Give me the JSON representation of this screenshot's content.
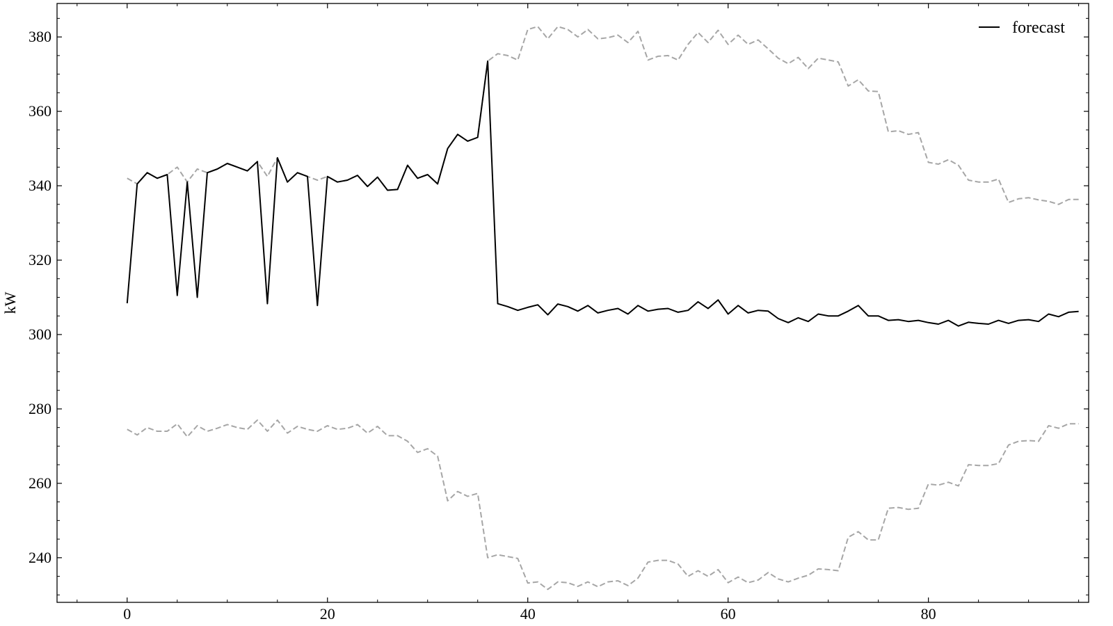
{
  "chart_data": {
    "type": "line",
    "ylabel": "kW",
    "xlim": [
      -7,
      96
    ],
    "ylim": [
      228,
      389
    ],
    "x_ticks": [
      0,
      20,
      40,
      60,
      80
    ],
    "y_ticks": [
      240,
      260,
      280,
      300,
      320,
      340,
      360,
      380
    ],
    "legend": {
      "position": "top-right",
      "entries": [
        "forecast"
      ]
    },
    "grid": false,
    "series": [
      {
        "name": "forecast",
        "style": "solid",
        "color": "#000000",
        "x": [
          0,
          1,
          2,
          3,
          4,
          5,
          6,
          7,
          8,
          9,
          10,
          11,
          12,
          13,
          14,
          15,
          16,
          17,
          18,
          19,
          20,
          21,
          22,
          23,
          24,
          25,
          26,
          27,
          28,
          29,
          30,
          31,
          32,
          33,
          34,
          35,
          36,
          37,
          38,
          39,
          40,
          41,
          42,
          43,
          44,
          45,
          46,
          47,
          48,
          49,
          50,
          51,
          52,
          53,
          54,
          55,
          56,
          57,
          58,
          59,
          60,
          61,
          62,
          63,
          64,
          65,
          66,
          67,
          68,
          69,
          70,
          71,
          72,
          73,
          74,
          75,
          76,
          77,
          78,
          79,
          80,
          81,
          82,
          83,
          84,
          85,
          86,
          87,
          88,
          89,
          90,
          91,
          92,
          93,
          94,
          95
        ],
        "values": [
          308.4,
          340.5,
          343.5,
          342.0,
          343.0,
          310.5,
          341.0,
          310.0,
          343.5,
          344.5,
          346.0,
          345.0,
          344.0,
          346.5,
          308.3,
          347.5,
          341.0,
          343.5,
          342.5,
          307.8,
          342.5,
          341.0,
          341.5,
          342.8,
          339.8,
          342.3,
          338.8,
          339.0,
          345.5,
          342.0,
          343.0,
          340.5,
          350.0,
          353.8,
          352.0,
          353.0,
          373.5,
          308.3,
          307.5,
          306.5,
          307.3,
          308.0,
          305.3,
          308.2,
          307.5,
          306.3,
          307.8,
          305.8,
          306.5,
          307.0,
          305.5,
          307.8,
          306.3,
          306.8,
          307.0,
          306.0,
          306.5,
          308.8,
          307.0,
          309.3,
          305.5,
          307.8,
          305.8,
          306.5,
          306.3,
          304.3,
          303.2,
          304.5,
          303.5,
          305.5,
          305.0,
          305.0,
          306.3,
          307.8,
          305.0,
          305.0,
          303.8,
          304.0,
          303.5,
          303.8,
          303.2,
          302.8,
          303.8,
          302.3,
          303.3,
          303.0,
          302.8,
          303.8,
          303.0,
          303.8,
          304.0,
          303.5,
          305.5,
          304.8,
          306.0,
          306.2
        ]
      },
      {
        "name": "",
        "style": "dashed",
        "color": "#a6a6a6",
        "x": [
          0,
          1,
          2,
          3,
          4,
          5,
          6,
          7,
          8,
          9,
          10,
          11,
          12,
          13,
          14,
          15,
          16,
          17,
          18,
          19,
          20,
          21,
          22,
          23,
          24,
          25,
          26,
          27,
          28,
          29,
          30,
          31,
          32,
          33,
          34,
          35,
          36,
          37,
          38,
          39,
          40,
          41,
          42,
          43,
          44,
          45,
          46,
          47,
          48,
          49,
          50,
          51,
          52,
          53,
          54,
          55,
          56,
          57,
          58,
          59,
          60,
          61,
          62,
          63,
          64,
          65,
          66,
          67,
          68,
          69,
          70,
          71,
          72,
          73,
          74,
          75,
          76,
          77,
          78,
          79,
          80,
          81,
          82,
          83,
          84,
          85,
          86,
          87,
          88,
          89,
          90,
          91,
          92,
          93,
          94,
          95
        ],
        "values": [
          342.0,
          340.5,
          343.5,
          342.0,
          343.0,
          345.0,
          341.0,
          344.5,
          343.5,
          344.5,
          346.0,
          345.0,
          344.0,
          346.5,
          342.5,
          347.5,
          341.0,
          343.5,
          342.5,
          341.5,
          342.5,
          341.0,
          341.5,
          342.8,
          339.8,
          342.3,
          338.8,
          339.0,
          345.5,
          342.0,
          343.0,
          340.5,
          350.0,
          353.8,
          352.0,
          353.0,
          373.5,
          375.5,
          375.0,
          373.8,
          382.0,
          382.8,
          379.5,
          382.8,
          382.0,
          380.0,
          382.0,
          379.5,
          379.8,
          380.5,
          378.5,
          381.5,
          373.8,
          374.8,
          375.0,
          373.8,
          378.0,
          381.2,
          378.5,
          381.8,
          378.0,
          380.5,
          378.0,
          379.2,
          376.8,
          374.3,
          372.8,
          374.5,
          371.5,
          374.3,
          373.8,
          373.3,
          366.8,
          368.5,
          365.5,
          365.3,
          354.5,
          354.8,
          353.8,
          354.3,
          346.3,
          345.8,
          347.0,
          345.5,
          341.5,
          341.0,
          341.0,
          341.8,
          335.5,
          336.5,
          336.8,
          336.2,
          335.8,
          335.0,
          336.3,
          336.3
        ]
      },
      {
        "name": "",
        "style": "dashed",
        "color": "#a6a6a6",
        "x": [
          0,
          1,
          2,
          3,
          4,
          5,
          6,
          7,
          8,
          9,
          10,
          11,
          12,
          13,
          14,
          15,
          16,
          17,
          18,
          19,
          20,
          21,
          22,
          23,
          24,
          25,
          26,
          27,
          28,
          29,
          30,
          31,
          32,
          33,
          34,
          35,
          36,
          37,
          38,
          39,
          40,
          41,
          42,
          43,
          44,
          45,
          46,
          47,
          48,
          49,
          50,
          51,
          52,
          53,
          54,
          55,
          56,
          57,
          58,
          59,
          60,
          61,
          62,
          63,
          64,
          65,
          66,
          67,
          68,
          69,
          70,
          71,
          72,
          73,
          74,
          75,
          76,
          77,
          78,
          79,
          80,
          81,
          82,
          83,
          84,
          85,
          86,
          87,
          88,
          89,
          90,
          91,
          92,
          93,
          94,
          95
        ],
        "values": [
          274.5,
          273.0,
          275.0,
          274.0,
          274.0,
          276.0,
          272.5,
          275.5,
          274.0,
          274.8,
          275.8,
          275.0,
          274.5,
          277.0,
          274.0,
          277.0,
          273.5,
          275.3,
          274.5,
          274.0,
          275.5,
          274.5,
          274.8,
          275.8,
          273.5,
          275.3,
          272.8,
          272.8,
          271.3,
          268.3,
          269.3,
          267.3,
          255.3,
          257.8,
          256.5,
          257.3,
          240.0,
          240.8,
          240.3,
          239.8,
          233.2,
          233.5,
          231.5,
          233.5,
          233.3,
          232.3,
          233.5,
          232.2,
          233.5,
          233.8,
          232.5,
          234.5,
          238.8,
          239.3,
          239.3,
          238.3,
          235.0,
          236.5,
          235.0,
          236.8,
          233.3,
          234.8,
          233.3,
          234.0,
          236.0,
          234.3,
          233.5,
          234.5,
          235.3,
          237.0,
          236.8,
          236.5,
          245.5,
          247.0,
          244.8,
          244.8,
          253.3,
          253.5,
          253.0,
          253.3,
          259.8,
          259.5,
          260.3,
          259.3,
          265.0,
          264.8,
          264.8,
          265.3,
          270.3,
          271.3,
          271.5,
          271.3,
          275.5,
          274.8,
          276.0,
          276.0
        ]
      }
    ]
  }
}
